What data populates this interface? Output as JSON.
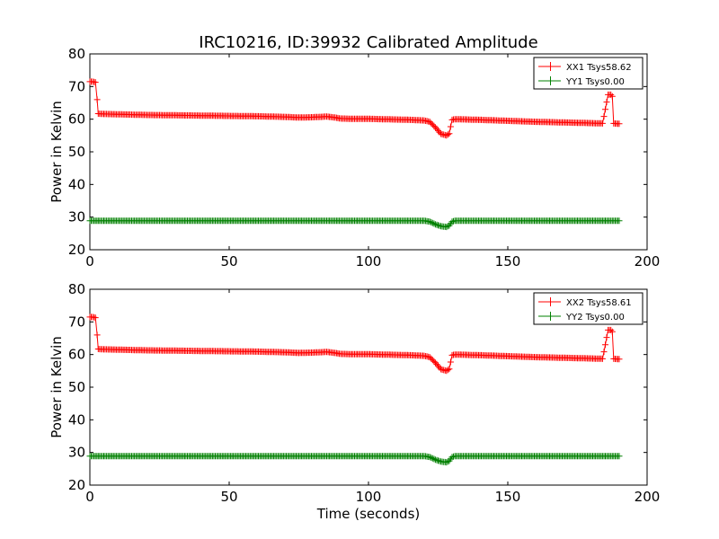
{
  "title": "IRC10216, ID:39932 Calibrated Amplitude",
  "colors": {
    "xx": "#ff0000",
    "yy": "#008000"
  },
  "chart_data": [
    {
      "type": "line",
      "title": "IRC10216, ID:39932 Calibrated Amplitude",
      "xlabel": "",
      "ylabel": "Power in Kelvin",
      "xlim": [
        0,
        200
      ],
      "ylim": [
        20,
        80
      ],
      "xticks": [
        0,
        50,
        100,
        150,
        200
      ],
      "yticks": [
        20,
        30,
        40,
        50,
        60,
        70,
        80
      ],
      "grid": false,
      "legend_position": "top-right",
      "marker": "+",
      "series": [
        {
          "name": "XX1 Tsys58.62",
          "color": "#ff0000",
          "x": [
            0,
            1,
            2,
            2.6,
            3,
            5,
            10,
            20,
            30,
            40,
            50,
            60,
            70,
            75,
            80,
            85,
            88,
            90,
            95,
            100,
            110,
            115,
            120,
            122,
            124,
            126,
            128,
            129,
            130,
            131,
            140,
            150,
            160,
            170,
            180,
            184,
            185,
            186,
            187,
            187.5,
            188,
            190
          ],
          "y": [
            71.5,
            71.5,
            71.3,
            66,
            61.7,
            61.6,
            61.5,
            61.3,
            61.2,
            61.1,
            61.0,
            60.9,
            60.7,
            60.5,
            60.6,
            60.8,
            60.5,
            60.2,
            60.1,
            60.1,
            59.9,
            59.8,
            59.6,
            59.2,
            57.5,
            55.5,
            55.0,
            55.6,
            59.8,
            60.0,
            59.8,
            59.5,
            59.2,
            59.0,
            58.8,
            58.7,
            63,
            67.5,
            67.5,
            67,
            58.7,
            58.6
          ]
        },
        {
          "name": "YY1 Tsys0.00",
          "color": "#008000",
          "x": [
            0,
            10,
            20,
            30,
            40,
            50,
            60,
            70,
            80,
            90,
            100,
            110,
            120,
            122,
            124,
            126,
            128,
            129,
            130,
            131,
            140,
            150,
            160,
            170,
            180,
            190
          ],
          "y": [
            28.9,
            28.9,
            28.9,
            28.9,
            28.9,
            28.9,
            28.9,
            28.9,
            28.9,
            28.9,
            28.9,
            28.9,
            28.9,
            28.6,
            27.8,
            27.2,
            27.0,
            27.4,
            28.6,
            28.9,
            28.9,
            28.9,
            28.9,
            28.9,
            28.9,
            28.9
          ]
        }
      ]
    },
    {
      "type": "line",
      "title": "",
      "xlabel": "Time (seconds)",
      "ylabel": "Power in Kelvin",
      "xlim": [
        0,
        200
      ],
      "ylim": [
        20,
        80
      ],
      "xticks": [
        0,
        50,
        100,
        150,
        200
      ],
      "yticks": [
        20,
        30,
        40,
        50,
        60,
        70,
        80
      ],
      "grid": false,
      "legend_position": "top-right",
      "marker": "+",
      "series": [
        {
          "name": "XX2 Tsys58.61",
          "color": "#ff0000",
          "x": [
            0,
            1,
            2,
            2.6,
            3,
            5,
            10,
            20,
            30,
            40,
            50,
            60,
            70,
            75,
            80,
            85,
            88,
            90,
            95,
            100,
            110,
            115,
            120,
            122,
            124,
            126,
            128,
            129,
            130,
            131,
            140,
            150,
            160,
            170,
            180,
            184,
            185,
            186,
            187,
            187.5,
            188,
            190
          ],
          "y": [
            71.5,
            71.5,
            71.3,
            66,
            61.7,
            61.6,
            61.5,
            61.3,
            61.2,
            61.1,
            61.0,
            60.9,
            60.7,
            60.5,
            60.6,
            60.8,
            60.5,
            60.2,
            60.1,
            60.1,
            59.9,
            59.8,
            59.6,
            59.2,
            57.5,
            55.5,
            55.0,
            55.6,
            59.8,
            60.0,
            59.8,
            59.5,
            59.2,
            59.0,
            58.8,
            58.7,
            63,
            67.5,
            67.5,
            67,
            58.7,
            58.6
          ]
        },
        {
          "name": "YY2 Tsys0.00",
          "color": "#008000",
          "x": [
            0,
            10,
            20,
            30,
            40,
            50,
            60,
            70,
            80,
            90,
            100,
            110,
            120,
            122,
            124,
            126,
            128,
            129,
            130,
            131,
            140,
            150,
            160,
            170,
            180,
            190
          ],
          "y": [
            28.9,
            28.9,
            28.9,
            28.9,
            28.9,
            28.9,
            28.9,
            28.9,
            28.9,
            28.9,
            28.9,
            28.9,
            28.9,
            28.6,
            27.8,
            27.2,
            27.0,
            27.4,
            28.6,
            28.9,
            28.9,
            28.9,
            28.9,
            28.9,
            28.9,
            28.9
          ]
        }
      ]
    }
  ]
}
